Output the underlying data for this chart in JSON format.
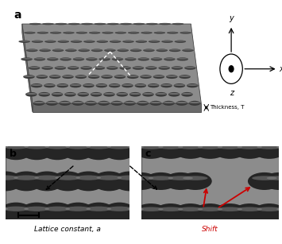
{
  "slab_color": "#8c8c8c",
  "slab_color_dark": "#6a6a6a",
  "slab_color_side": "#787878",
  "hole_color": "#3a3a3a",
  "background_color": "#ffffff",
  "label_a": "a",
  "label_b": "b",
  "label_c": "c",
  "thickness_label": "Thickness, T",
  "lattice_label": "Lattice constant, a",
  "shift_label": "Shift",
  "axis_label_x": "x",
  "axis_label_y": "y",
  "axis_label_z": "z",
  "arrow_color": "#cc0000"
}
